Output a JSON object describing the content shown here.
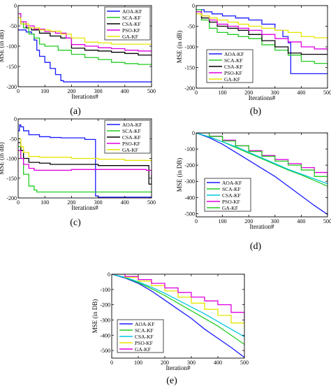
{
  "colors": {
    "AOA-KF": "#1a1aff",
    "SCA-KF": "#22cc22",
    "CSA-KF": "#000000",
    "PSO-KF": "#e000e0",
    "GA-KF": "#e6e600",
    "cyan": "#00c8e0"
  },
  "chart_data": [
    {
      "type": "line",
      "caption": "(a)",
      "xlabel": "Iterations#",
      "ylabel": "MSE (in dB)",
      "xlim": [
        0,
        500
      ],
      "ylim": [
        -200,
        0
      ],
      "xticks": [
        0,
        100,
        200,
        300,
        400,
        500
      ],
      "yticks": [
        0,
        -50,
        -100,
        -150,
        -200
      ],
      "grid": false,
      "legend_position": "top-right",
      "series": [
        {
          "name": "AOA-KF",
          "color_key": "AOA-KF",
          "step": true,
          "x": [
            0,
            10,
            30,
            50,
            60,
            70,
            80,
            100,
            120,
            140,
            160,
            170,
            200,
            300,
            400,
            500
          ],
          "y": [
            -60,
            -60,
            -65,
            -70,
            -85,
            -110,
            -125,
            -140,
            -155,
            -170,
            -185,
            -188,
            -188,
            -188,
            -188,
            -188
          ]
        },
        {
          "name": "SCA-KF",
          "color_key": "SCA-KF",
          "step": true,
          "x": [
            0,
            10,
            20,
            40,
            60,
            80,
            100,
            150,
            200,
            250,
            300,
            350,
            400,
            450,
            500
          ],
          "y": [
            -20,
            -40,
            -55,
            -70,
            -80,
            -95,
            -100,
            -110,
            -120,
            -128,
            -133,
            -140,
            -143,
            -145,
            -148
          ]
        },
        {
          "name": "CSA-KF",
          "color_key": "CSA-KF",
          "step": true,
          "x": [
            0,
            10,
            30,
            50,
            80,
            120,
            160,
            200,
            250,
            300,
            350,
            400,
            450,
            500
          ],
          "y": [
            -30,
            -45,
            -55,
            -60,
            -68,
            -75,
            -80,
            -105,
            -110,
            -112,
            -115,
            -118,
            -122,
            -125
          ]
        },
        {
          "name": "PSO-KF",
          "color_key": "PSO-KF",
          "step": true,
          "x": [
            0,
            10,
            30,
            60,
            100,
            140,
            180,
            200,
            250,
            300,
            350,
            400,
            450,
            500
          ],
          "y": [
            -20,
            -40,
            -50,
            -58,
            -64,
            -68,
            -80,
            -96,
            -100,
            -104,
            -106,
            -110,
            -112,
            -112
          ]
        },
        {
          "name": "GA-KF",
          "color_key": "GA-KF",
          "step": true,
          "x": [
            0,
            10,
            40,
            80,
            120,
            160,
            200,
            250,
            300,
            350,
            400,
            450,
            500
          ],
          "y": [
            -30,
            -45,
            -55,
            -60,
            -63,
            -70,
            -80,
            -90,
            -92,
            -95,
            -95,
            -95,
            -95
          ]
        }
      ]
    },
    {
      "type": "line",
      "caption": "(b)",
      "xlabel": "Iterations#",
      "ylabel": "MSE (in dB)",
      "xlim": [
        0,
        500
      ],
      "ylim": [
        -200,
        0
      ],
      "xticks": [
        0,
        100,
        200,
        300,
        400,
        500
      ],
      "yticks": [
        0,
        -50,
        -100,
        -150,
        -200
      ],
      "grid": false,
      "legend_position": "bottom-right",
      "series": [
        {
          "name": "AOA-KF",
          "color_key": "AOA-KF",
          "step": true,
          "x": [
            0,
            30,
            60,
            100,
            150,
            200,
            250,
            300,
            330,
            350,
            360,
            370,
            400,
            450,
            500
          ],
          "y": [
            -10,
            -15,
            -20,
            -25,
            -30,
            -35,
            -45,
            -60,
            -75,
            -90,
            -165,
            -165,
            -165,
            -165,
            -165
          ]
        },
        {
          "name": "SCA-KF",
          "color_key": "SCA-KF",
          "step": true,
          "x": [
            0,
            20,
            50,
            80,
            120,
            160,
            200,
            250,
            300,
            350,
            400,
            450,
            500
          ],
          "y": [
            -10,
            -35,
            -55,
            -65,
            -70,
            -75,
            -80,
            -95,
            -108,
            -120,
            -135,
            -140,
            -145
          ]
        },
        {
          "name": "CSA-KF",
          "color_key": "CSA-KF",
          "step": true,
          "x": [
            0,
            20,
            50,
            80,
            120,
            160,
            200,
            250,
            300,
            350,
            400,
            450,
            500
          ],
          "y": [
            -15,
            -30,
            -40,
            -50,
            -55,
            -60,
            -70,
            -85,
            -100,
            -115,
            -118,
            -118,
            -118
          ]
        },
        {
          "name": "PSO-KF",
          "color_key": "PSO-KF",
          "step": true,
          "x": [
            0,
            20,
            50,
            80,
            120,
            160,
            200,
            250,
            300,
            350,
            400,
            450,
            500
          ],
          "y": [
            -15,
            -25,
            -35,
            -45,
            -50,
            -55,
            -60,
            -70,
            -80,
            -88,
            -100,
            -105,
            -110
          ]
        },
        {
          "name": "GA-KF",
          "color_key": "GA-KF",
          "step": true,
          "x": [
            0,
            20,
            50,
            80,
            120,
            160,
            200,
            250,
            300,
            350,
            400,
            450,
            500
          ],
          "y": [
            -20,
            -25,
            -30,
            -35,
            -40,
            -45,
            -50,
            -55,
            -60,
            -65,
            -75,
            -78,
            -80
          ]
        }
      ]
    },
    {
      "type": "line",
      "caption": "(c)",
      "xlabel": "Iterations#",
      "ylabel": "MSE (in dB)",
      "xlim": [
        0,
        500
      ],
      "ylim": [
        -200,
        0
      ],
      "xticks": [
        0,
        100,
        200,
        300,
        400,
        500
      ],
      "yticks": [
        0,
        -50,
        -100,
        -150,
        -200
      ],
      "grid": false,
      "legend_position": "top-right",
      "series": [
        {
          "name": "AOA-KF",
          "color_key": "AOA-KF",
          "step": true,
          "x": [
            0,
            5,
            10,
            20,
            40,
            80,
            120,
            160,
            200,
            250,
            285,
            290,
            300,
            400,
            500
          ],
          "y": [
            -30,
            -15,
            -20,
            -30,
            -40,
            -45,
            -47,
            -48,
            -48,
            -52,
            -52,
            -195,
            -198,
            -198,
            -198
          ]
        },
        {
          "name": "SCA-KF",
          "color_key": "SCA-KF",
          "step": true,
          "x": [
            0,
            10,
            20,
            40,
            60,
            70,
            100,
            200,
            300,
            400,
            500
          ],
          "y": [
            -70,
            -100,
            -140,
            -170,
            -180,
            -185,
            -185,
            -185,
            -185,
            -185,
            -185
          ]
        },
        {
          "name": "CSA-KF",
          "color_key": "CSA-KF",
          "step": true,
          "x": [
            0,
            10,
            20,
            40,
            80,
            120,
            200,
            300,
            400,
            480,
            490,
            500
          ],
          "y": [
            -60,
            -80,
            -100,
            -110,
            -112,
            -115,
            -115,
            -118,
            -118,
            -118,
            -165,
            -140
          ]
        },
        {
          "name": "PSO-KF",
          "color_key": "PSO-KF",
          "step": true,
          "x": [
            0,
            10,
            20,
            40,
            60,
            100,
            200,
            300,
            400,
            480,
            500
          ],
          "y": [
            -80,
            -100,
            -115,
            -125,
            -130,
            -130,
            -128,
            -128,
            -128,
            -130,
            -148
          ]
        },
        {
          "name": "GA-KF",
          "color_key": "GA-KF",
          "step": true,
          "x": [
            0,
            10,
            20,
            40,
            80,
            120,
            200,
            300,
            400,
            500
          ],
          "y": [
            -50,
            -70,
            -85,
            -95,
            -97,
            -97,
            -100,
            -102,
            -105,
            -108
          ]
        }
      ]
    },
    {
      "type": "line",
      "caption": "(d)",
      "xlabel": "Iteration#",
      "ylabel": "MSE (in DB)",
      "xlim": [
        0,
        500
      ],
      "ylim": [
        -520,
        0
      ],
      "xticks": [
        0,
        100,
        200,
        300,
        400,
        500
      ],
      "yticks": [
        0,
        -100,
        -200,
        -300,
        -400,
        -500
      ],
      "grid": false,
      "legend_position": "bottom-left",
      "series": [
        {
          "name": "AOA-KF",
          "color_key": "AOA-KF",
          "step": false,
          "x": [
            0,
            50,
            100,
            150,
            200,
            250,
            300,
            350,
            400,
            450,
            500
          ],
          "y": [
            0,
            -30,
            -70,
            -120,
            -170,
            -220,
            -270,
            -330,
            -390,
            -450,
            -505
          ]
        },
        {
          "name": "SCA-KF",
          "color_key": "SCA-KF",
          "step": false,
          "x": [
            0,
            50,
            100,
            150,
            200,
            250,
            300,
            350,
            400,
            450,
            500
          ],
          "y": [
            0,
            -25,
            -55,
            -90,
            -125,
            -160,
            -195,
            -230,
            -260,
            -295,
            -330
          ]
        },
        {
          "name": "CSA-KF",
          "color_key": "cyan",
          "step": false,
          "x": [
            0,
            50,
            100,
            150,
            200,
            250,
            300,
            350,
            400,
            450,
            500
          ],
          "y": [
            0,
            -25,
            -55,
            -85,
            -120,
            -155,
            -190,
            -225,
            -255,
            -285,
            -315
          ]
        },
        {
          "name": "PSO-KF",
          "color_key": "PSO-KF",
          "step": true,
          "x": [
            0,
            50,
            100,
            150,
            200,
            250,
            300,
            350,
            400,
            450,
            500
          ],
          "y": [
            0,
            -20,
            -45,
            -80,
            -110,
            -140,
            -165,
            -190,
            -215,
            -245,
            -270
          ]
        },
        {
          "name": "GA-KF",
          "color_key": "SCA-KF",
          "step": true,
          "x": [
            0,
            50,
            100,
            150,
            200,
            250,
            300,
            350,
            400,
            450,
            500
          ],
          "y": [
            0,
            -22,
            -50,
            -80,
            -115,
            -145,
            -175,
            -200,
            -230,
            -270,
            -300
          ]
        }
      ]
    },
    {
      "type": "line",
      "caption": "(e)",
      "xlabel": "Iteration#",
      "ylabel": "MSE (in DB)",
      "xlim": [
        0,
        500
      ],
      "ylim": [
        -550,
        0
      ],
      "xticks": [
        0,
        100,
        200,
        300,
        400,
        500
      ],
      "yticks": [
        0,
        -100,
        -200,
        -300,
        -400,
        -500
      ],
      "grid": false,
      "legend_position": "bottom-left",
      "series": [
        {
          "name": "AOA-KF",
          "color_key": "AOA-KF",
          "step": false,
          "x": [
            0,
            50,
            100,
            150,
            200,
            250,
            300,
            350,
            400,
            450,
            500
          ],
          "y": [
            0,
            -25,
            -60,
            -110,
            -170,
            -230,
            -290,
            -360,
            -420,
            -480,
            -545
          ]
        },
        {
          "name": "SCA-KF",
          "color_key": "SCA-KF",
          "step": false,
          "x": [
            0,
            50,
            100,
            150,
            200,
            250,
            300,
            350,
            400,
            450,
            500
          ],
          "y": [
            0,
            -22,
            -55,
            -95,
            -140,
            -190,
            -240,
            -290,
            -340,
            -400,
            -460
          ]
        },
        {
          "name": "CSA-KF",
          "color_key": "cyan",
          "step": false,
          "x": [
            0,
            50,
            100,
            150,
            200,
            250,
            300,
            350,
            400,
            450,
            500
          ],
          "y": [
            0,
            -20,
            -50,
            -85,
            -125,
            -170,
            -215,
            -260,
            -310,
            -360,
            -410
          ]
        },
        {
          "name": "PSO-KF",
          "color_key": "GA-KF",
          "step": true,
          "x": [
            0,
            50,
            100,
            150,
            200,
            250,
            300,
            350,
            400,
            450,
            500
          ],
          "y": [
            0,
            -20,
            -45,
            -75,
            -110,
            -150,
            -190,
            -230,
            -270,
            -320,
            -360
          ]
        },
        {
          "name": "GA-KF",
          "color_key": "PSO-KF",
          "step": true,
          "x": [
            0,
            50,
            100,
            150,
            200,
            250,
            300,
            350,
            400,
            450,
            500
          ],
          "y": [
            0,
            -15,
            -35,
            -60,
            -90,
            -120,
            -150,
            -175,
            -200,
            -250,
            -310
          ]
        }
      ]
    }
  ]
}
